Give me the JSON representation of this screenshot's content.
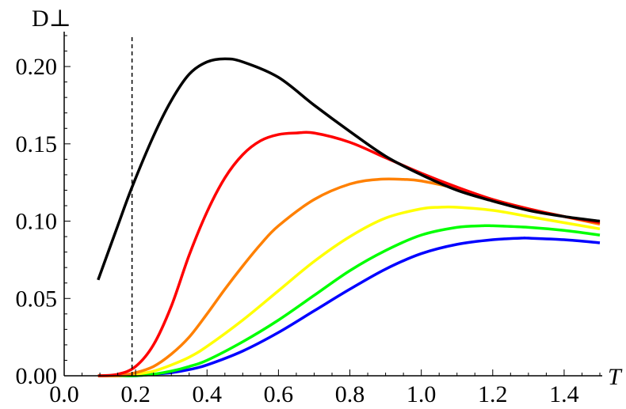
{
  "chart_data": {
    "type": "line",
    "xlabel": "T",
    "ylabel": "D⊥",
    "xlim": [
      0.0,
      1.5
    ],
    "ylim": [
      0.0,
      0.22
    ],
    "x_ticks": [
      0.0,
      0.2,
      0.4,
      0.6,
      0.8,
      1.0,
      1.2,
      1.4
    ],
    "x_tick_labels": [
      "0.0",
      "0.2",
      "0.4",
      "0.6",
      "0.8",
      "1.0",
      "1.2",
      "1.4"
    ],
    "y_ticks": [
      0.0,
      0.05,
      0.1,
      0.15,
      0.2
    ],
    "y_tick_labels": [
      "0.00",
      "0.05",
      "0.10",
      "0.15",
      "0.20"
    ],
    "grid": false,
    "reference_line": {
      "x": 0.19,
      "style": "dashed"
    },
    "series": [
      {
        "color": "#000000",
        "x": [
          0.095,
          0.15,
          0.19,
          0.25,
          0.3,
          0.35,
          0.4,
          0.45,
          0.5,
          0.6,
          0.7,
          0.8,
          0.9,
          1.0,
          1.1,
          1.2,
          1.3,
          1.4,
          1.5
        ],
        "y": [
          0.062,
          0.097,
          0.122,
          0.155,
          0.178,
          0.195,
          0.203,
          0.205,
          0.203,
          0.193,
          0.175,
          0.158,
          0.142,
          0.13,
          0.12,
          0.113,
          0.107,
          0.103,
          0.1
        ]
      },
      {
        "color": "#ff0000",
        "x": [
          0.095,
          0.15,
          0.2,
          0.25,
          0.3,
          0.35,
          0.4,
          0.45,
          0.5,
          0.55,
          0.6,
          0.65,
          0.7,
          0.8,
          0.9,
          1.0,
          1.1,
          1.2,
          1.3,
          1.4,
          1.5
        ],
        "y": [
          0.0,
          0.001,
          0.006,
          0.02,
          0.045,
          0.078,
          0.106,
          0.128,
          0.143,
          0.152,
          0.156,
          0.157,
          0.157,
          0.151,
          0.141,
          0.131,
          0.122,
          0.114,
          0.108,
          0.103,
          0.099
        ]
      },
      {
        "color": "#ff8000",
        "x": [
          0.095,
          0.15,
          0.2,
          0.25,
          0.3,
          0.35,
          0.4,
          0.45,
          0.5,
          0.55,
          0.6,
          0.7,
          0.8,
          0.88,
          0.95,
          1.0,
          1.1,
          1.2,
          1.3,
          1.4,
          1.5
        ],
        "y": [
          0.0,
          0.0,
          0.002,
          0.006,
          0.014,
          0.025,
          0.04,
          0.056,
          0.071,
          0.085,
          0.097,
          0.114,
          0.124,
          0.127,
          0.127,
          0.126,
          0.121,
          0.114,
          0.108,
          0.103,
          0.098
        ]
      },
      {
        "color": "#ffff00",
        "x": [
          0.095,
          0.15,
          0.2,
          0.25,
          0.3,
          0.35,
          0.4,
          0.5,
          0.6,
          0.7,
          0.8,
          0.9,
          1.0,
          1.05,
          1.1,
          1.2,
          1.3,
          1.4,
          1.5
        ],
        "y": [
          0.0,
          0.0,
          0.001,
          0.003,
          0.007,
          0.012,
          0.019,
          0.036,
          0.055,
          0.074,
          0.09,
          0.102,
          0.108,
          0.109,
          0.109,
          0.107,
          0.103,
          0.099,
          0.095
        ]
      },
      {
        "color": "#00ff00",
        "x": [
          0.095,
          0.15,
          0.2,
          0.25,
          0.3,
          0.35,
          0.4,
          0.5,
          0.6,
          0.7,
          0.8,
          0.9,
          1.0,
          1.1,
          1.17,
          1.2,
          1.3,
          1.4,
          1.5
        ],
        "y": [
          0.0,
          0.0,
          0.0,
          0.001,
          0.003,
          0.006,
          0.01,
          0.022,
          0.036,
          0.052,
          0.068,
          0.081,
          0.091,
          0.096,
          0.097,
          0.097,
          0.096,
          0.094,
          0.091
        ]
      },
      {
        "color": "#0000ff",
        "x": [
          0.095,
          0.15,
          0.2,
          0.25,
          0.3,
          0.35,
          0.4,
          0.5,
          0.6,
          0.7,
          0.8,
          0.9,
          1.0,
          1.1,
          1.2,
          1.28,
          1.3,
          1.4,
          1.5
        ],
        "y": [
          0.0,
          0.0,
          0.0,
          0.001,
          0.002,
          0.004,
          0.007,
          0.016,
          0.028,
          0.042,
          0.056,
          0.069,
          0.079,
          0.085,
          0.088,
          0.089,
          0.089,
          0.088,
          0.086
        ]
      }
    ]
  }
}
